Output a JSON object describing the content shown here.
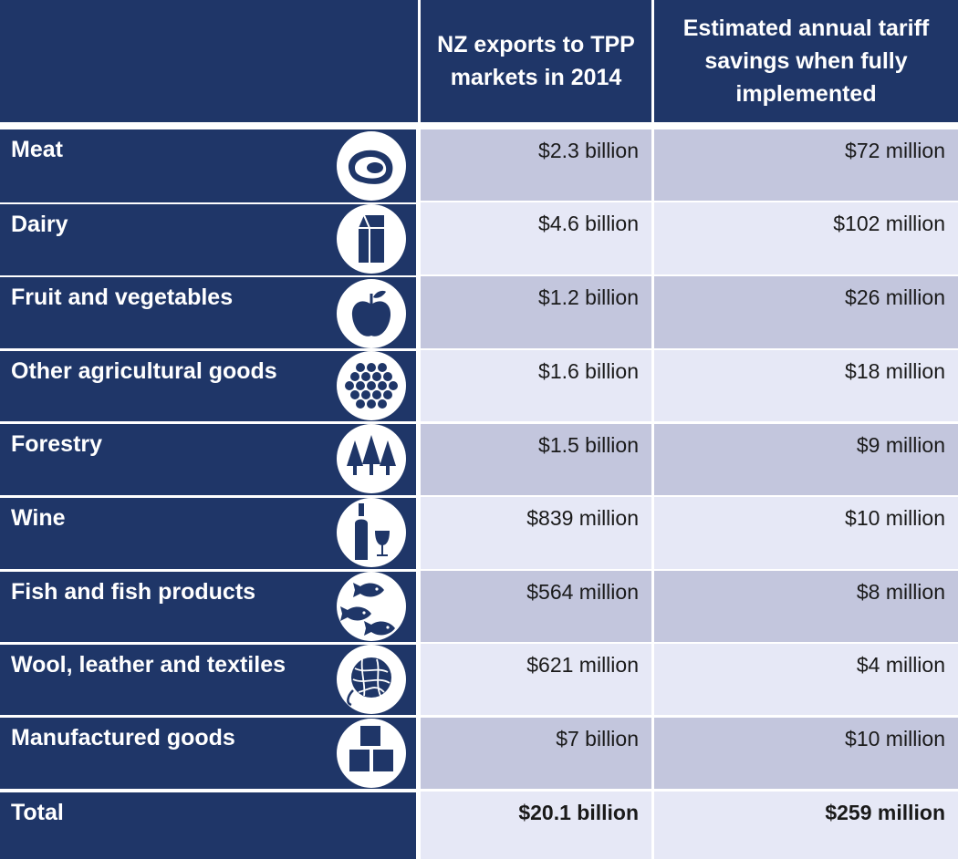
{
  "header": {
    "col_exports": "NZ exports to TPP markets in 2014",
    "col_savings": "Estimated annual tariff savings when fully implemented"
  },
  "rows": [
    {
      "category": "Meat",
      "icon": "steak-icon",
      "exports": "$2.3 billion",
      "savings": "$72 million"
    },
    {
      "category": "Dairy",
      "icon": "milk-carton-icon",
      "exports": "$4.6 billion",
      "savings": "$102 million"
    },
    {
      "category": "Fruit and vegetables",
      "icon": "apple-icon",
      "exports": "$1.2 billion",
      "savings": "$26 million"
    },
    {
      "category": "Other agricultural goods",
      "icon": "honeycomb-icon",
      "exports": "$1.6 billion",
      "savings": "$18 million"
    },
    {
      "category": "Forestry",
      "icon": "pine-trees-icon",
      "exports": "$1.5 billion",
      "savings": "$9 million"
    },
    {
      "category": "Wine",
      "icon": "wine-bottle-glass-icon",
      "exports": "$839 million",
      "savings": "$10 million"
    },
    {
      "category": "Fish and fish products",
      "icon": "fish-icon",
      "exports": "$564 million",
      "savings": "$8 million"
    },
    {
      "category": "Wool, leather and textiles",
      "icon": "yarn-ball-icon",
      "exports": "$621 million",
      "savings": "$4 million"
    },
    {
      "category": "Manufactured goods",
      "icon": "boxes-icon",
      "exports": "$7 billion",
      "savings": "$10 million"
    }
  ],
  "total": {
    "label": "Total",
    "exports": "$20.1 billion",
    "savings": "$259 million"
  }
}
